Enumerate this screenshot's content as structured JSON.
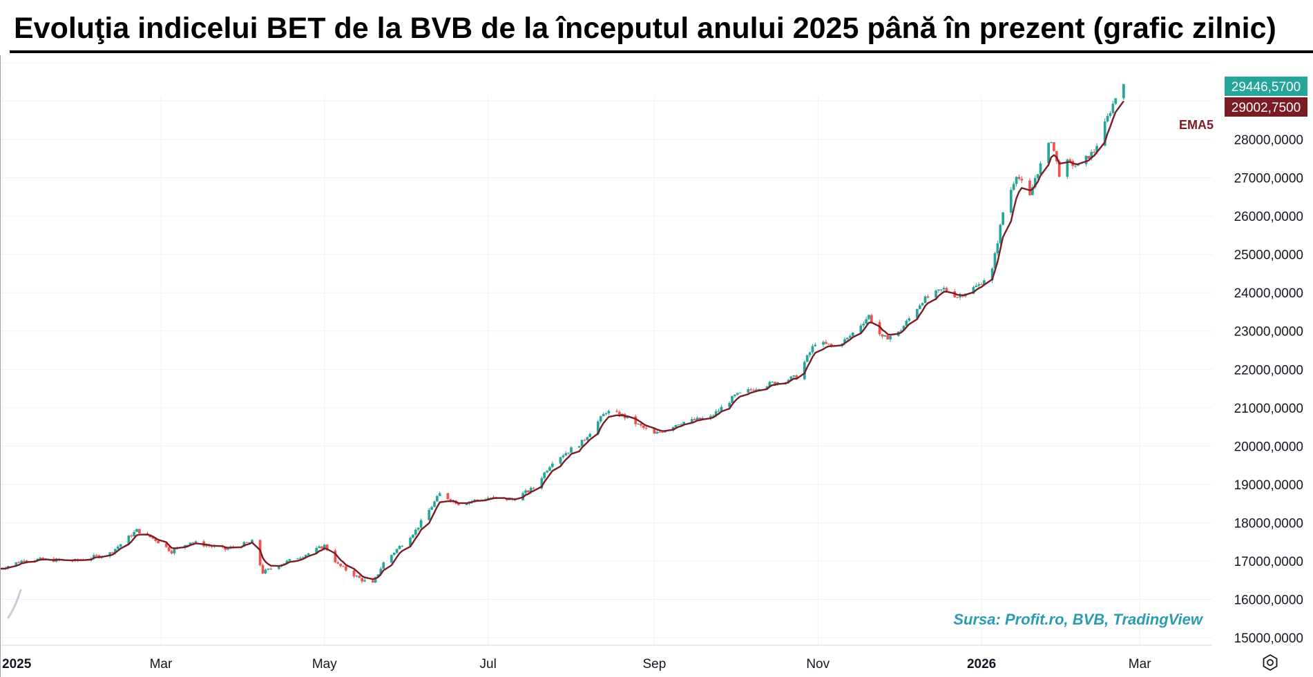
{
  "title": "Evoluţia indicelui BET de la BVB de la începutul anului 2025 până în prezent (grafic zilnic)",
  "source": "Sursa: Profit.ro, BVB, TradingView",
  "chart_data": {
    "type": "candlestick",
    "series_name": "BET",
    "ylim": [
      14800,
      30200
    ],
    "y_ticks": [
      {
        "value": 15000,
        "label": "15000,0000"
      },
      {
        "value": 16000,
        "label": "16000,0000"
      },
      {
        "value": 17000,
        "label": "17000,0000"
      },
      {
        "value": 18000,
        "label": "18000,0000"
      },
      {
        "value": 19000,
        "label": "19000,0000"
      },
      {
        "value": 20000,
        "label": "20000,0000"
      },
      {
        "value": 21000,
        "label": "21000,0000"
      },
      {
        "value": 22000,
        "label": "22000,0000"
      },
      {
        "value": 23000,
        "label": "23000,0000"
      },
      {
        "value": 24000,
        "label": "24000,0000"
      },
      {
        "value": 25000,
        "label": "25000,0000"
      },
      {
        "value": 26000,
        "label": "26000,0000"
      },
      {
        "value": 27000,
        "label": "27000,0000"
      },
      {
        "value": 28000,
        "label": "28000,0000"
      }
    ],
    "x_ticks": [
      {
        "date": "2025-01-01",
        "label": "2025",
        "bold": true
      },
      {
        "date": "2025-03-01",
        "label": "Mar",
        "bold": false
      },
      {
        "date": "2025-05-01",
        "label": "May",
        "bold": false
      },
      {
        "date": "2025-07-01",
        "label": "Jul",
        "bold": false
      },
      {
        "date": "2025-09-01",
        "label": "Sep",
        "bold": false
      },
      {
        "date": "2025-11-01",
        "label": "Nov",
        "bold": false
      },
      {
        "date": "2026-01-01",
        "label": "2026",
        "bold": true
      },
      {
        "date": "2026-03-01",
        "label": "Mar",
        "bold": false
      }
    ],
    "x_range": [
      "2024-12-31",
      "2026-03-28"
    ],
    "last_price": {
      "value": 29446.57,
      "label": "29446,5700",
      "color": "#26a69a"
    },
    "ema": {
      "name": "EMA5",
      "period": 5,
      "last_value": 29002.75,
      "label": "29002,7500",
      "color": "#7b1b24"
    },
    "up_color": "#26a69a",
    "down_color": "#ef5350",
    "grid": true,
    "key_points": [
      {
        "date": "2024-12-31",
        "close": 16800
      },
      {
        "date": "2025-01-10",
        "close": 17050
      },
      {
        "date": "2025-01-28",
        "close": 17000
      },
      {
        "date": "2025-02-10",
        "close": 17200
      },
      {
        "date": "2025-02-20",
        "close": 17800
      },
      {
        "date": "2025-02-27",
        "close": 17550
      },
      {
        "date": "2025-03-05",
        "close": 17250
      },
      {
        "date": "2025-03-12",
        "close": 17500
      },
      {
        "date": "2025-03-25",
        "close": 17300
      },
      {
        "date": "2025-04-04",
        "close": 17500
      },
      {
        "date": "2025-04-08",
        "close": 16700
      },
      {
        "date": "2025-04-14",
        "close": 16900
      },
      {
        "date": "2025-04-25",
        "close": 17200
      },
      {
        "date": "2025-05-01",
        "close": 17400
      },
      {
        "date": "2025-05-06",
        "close": 16900
      },
      {
        "date": "2025-05-15",
        "close": 16500
      },
      {
        "date": "2025-05-19",
        "close": 16400
      },
      {
        "date": "2025-05-23",
        "close": 16950
      },
      {
        "date": "2025-06-04",
        "close": 17800
      },
      {
        "date": "2025-06-13",
        "close": 18750
      },
      {
        "date": "2025-06-20",
        "close": 18500
      },
      {
        "date": "2025-07-01",
        "close": 18650
      },
      {
        "date": "2025-07-10",
        "close": 18600
      },
      {
        "date": "2025-07-18",
        "close": 18900
      },
      {
        "date": "2025-07-25",
        "close": 19600
      },
      {
        "date": "2025-08-05",
        "close": 20100
      },
      {
        "date": "2025-08-14",
        "close": 20900
      },
      {
        "date": "2025-08-20",
        "close": 20800
      },
      {
        "date": "2025-09-01",
        "close": 20300
      },
      {
        "date": "2025-09-10",
        "close": 20600
      },
      {
        "date": "2025-09-22",
        "close": 20750
      },
      {
        "date": "2025-10-01",
        "close": 21300
      },
      {
        "date": "2025-10-10",
        "close": 21550
      },
      {
        "date": "2025-10-24",
        "close": 21800
      },
      {
        "date": "2025-10-31",
        "close": 22700
      },
      {
        "date": "2025-11-07",
        "close": 22600
      },
      {
        "date": "2025-11-12",
        "close": 22800
      },
      {
        "date": "2025-11-20",
        "close": 23400
      },
      {
        "date": "2025-11-25",
        "close": 22800
      },
      {
        "date": "2025-12-01",
        "close": 22950
      },
      {
        "date": "2025-12-10",
        "close": 23800
      },
      {
        "date": "2025-12-18",
        "close": 24100
      },
      {
        "date": "2025-12-23",
        "close": 23900
      },
      {
        "date": "2025-12-31",
        "close": 24200
      },
      {
        "date": "2026-01-05",
        "close": 24600
      },
      {
        "date": "2026-01-09",
        "close": 26100
      },
      {
        "date": "2026-01-14",
        "close": 27100
      },
      {
        "date": "2026-01-19",
        "close": 26500
      },
      {
        "date": "2026-01-21",
        "close": 27000
      },
      {
        "date": "2026-01-27",
        "close": 28000
      },
      {
        "date": "2026-01-30",
        "close": 27100
      },
      {
        "date": "2026-02-02",
        "close": 27400
      },
      {
        "date": "2026-02-06",
        "close": 27300
      },
      {
        "date": "2026-02-12",
        "close": 27700
      },
      {
        "date": "2026-02-16",
        "close": 28400
      },
      {
        "date": "2026-02-20",
        "close": 29100
      },
      {
        "date": "2026-02-23",
        "close": 29446.57
      }
    ]
  }
}
